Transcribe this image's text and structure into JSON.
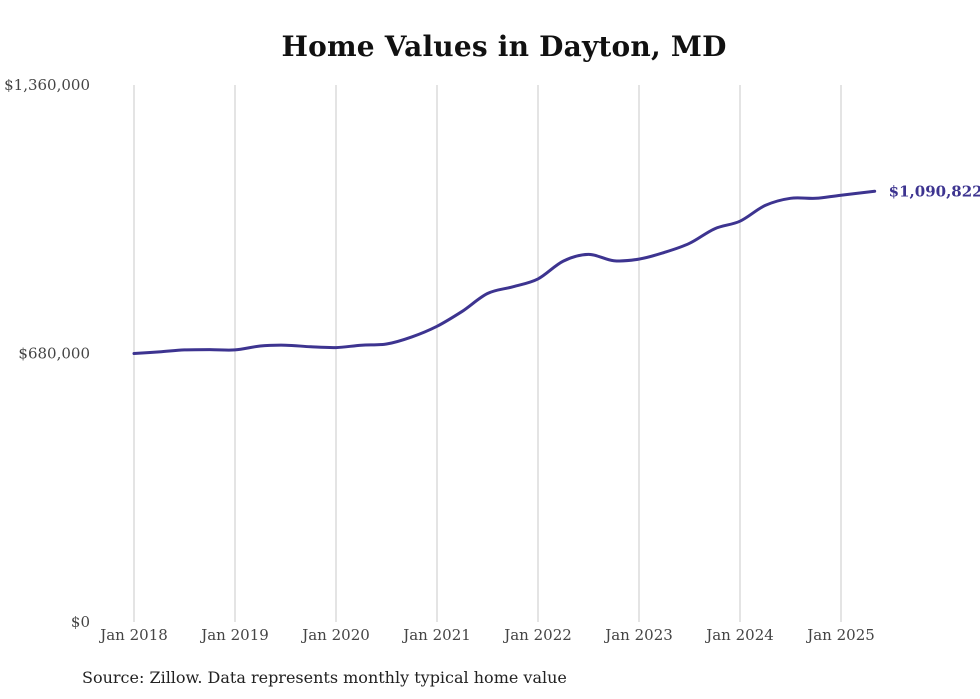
{
  "chart_data": {
    "type": "line",
    "title": "Home Values in Dayton, MD",
    "source": "Source: Zillow. Data represents monthly typical home value",
    "xlabel": "",
    "ylabel": "",
    "grid": "vertical",
    "x_ticks": [
      "Jan 2018",
      "Jan 2019",
      "Jan 2020",
      "Jan 2021",
      "Jan 2022",
      "Jan 2023",
      "Jan 2024",
      "Jan 2025"
    ],
    "y_ticks": [
      "$0",
      "$680,000",
      "$1,360,000"
    ],
    "ylim": [
      0,
      1360000
    ],
    "xlim": [
      "2018-01",
      "2025-05"
    ],
    "line_color": "#3d3490",
    "end_label": "$1,090,822",
    "series": [
      {
        "values": [
          {
            "x": "2018-01",
            "y": 680000
          },
          {
            "x": "2018-04",
            "y": 684000
          },
          {
            "x": "2018-07",
            "y": 689000
          },
          {
            "x": "2018-10",
            "y": 690000
          },
          {
            "x": "2019-01",
            "y": 689000
          },
          {
            "x": "2019-04",
            "y": 699000
          },
          {
            "x": "2019-07",
            "y": 701000
          },
          {
            "x": "2019-10",
            "y": 697000
          },
          {
            "x": "2020-01",
            "y": 695000
          },
          {
            "x": "2020-04",
            "y": 701000
          },
          {
            "x": "2020-07",
            "y": 704000
          },
          {
            "x": "2020-10",
            "y": 722000
          },
          {
            "x": "2021-01",
            "y": 749000
          },
          {
            "x": "2021-04",
            "y": 787000
          },
          {
            "x": "2021-07",
            "y": 832000
          },
          {
            "x": "2021-10",
            "y": 849000
          },
          {
            "x": "2022-01",
            "y": 869000
          },
          {
            "x": "2022-04",
            "y": 914000
          },
          {
            "x": "2022-07",
            "y": 931000
          },
          {
            "x": "2022-10",
            "y": 915000
          },
          {
            "x": "2023-01",
            "y": 919000
          },
          {
            "x": "2023-04",
            "y": 936000
          },
          {
            "x": "2023-07",
            "y": 959000
          },
          {
            "x": "2023-10",
            "y": 996000
          },
          {
            "x": "2024-01",
            "y": 1015000
          },
          {
            "x": "2024-04",
            "y": 1055000
          },
          {
            "x": "2024-07",
            "y": 1073000
          },
          {
            "x": "2024-10",
            "y": 1073000
          },
          {
            "x": "2025-01",
            "y": 1081000
          },
          {
            "x": "2025-05",
            "y": 1090822
          }
        ]
      }
    ]
  }
}
